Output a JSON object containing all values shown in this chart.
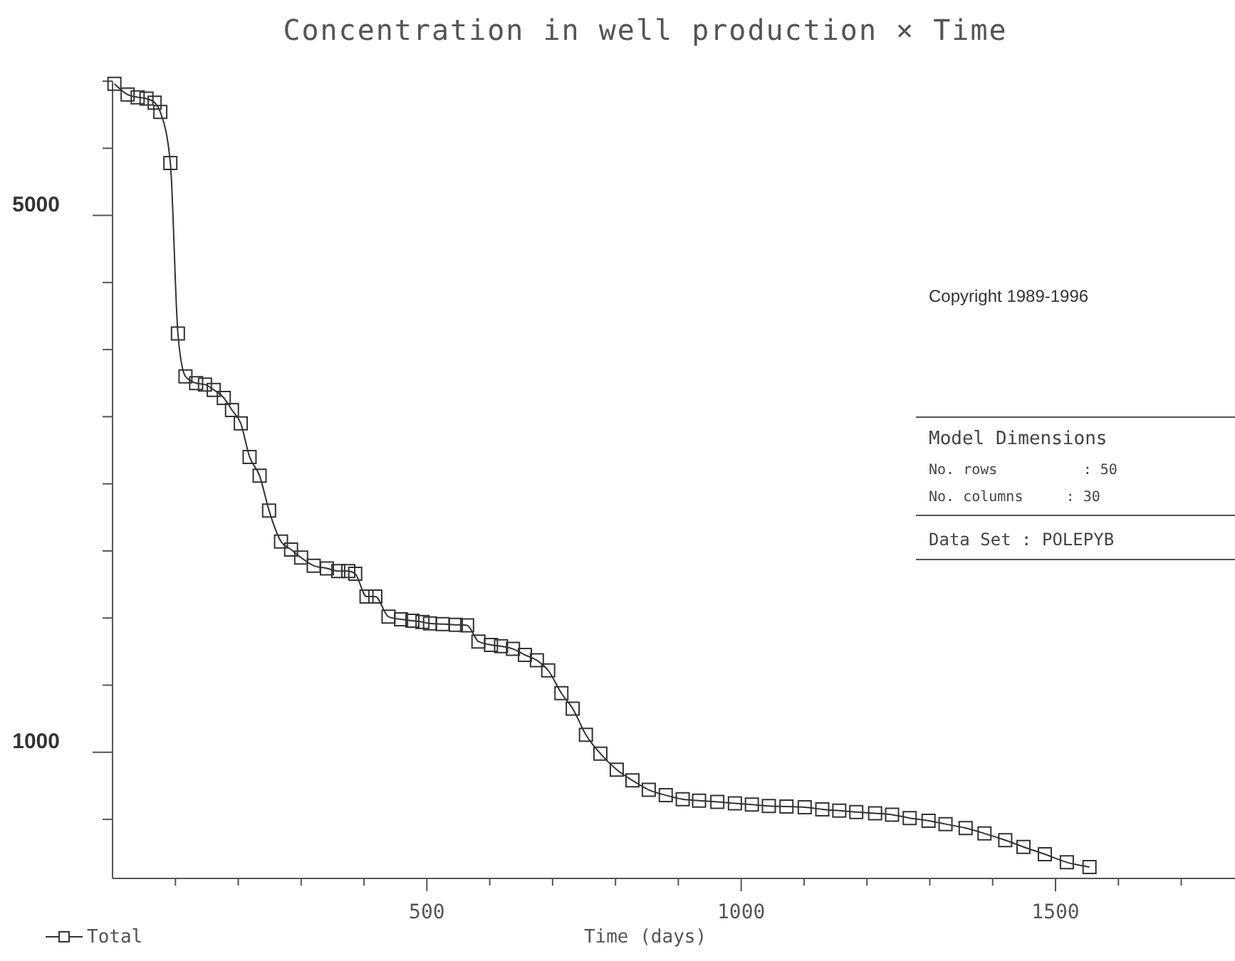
{
  "chart_data": {
    "type": "line",
    "title": "Concentration in well production × Time",
    "xlabel": "Time (days)",
    "x": [
      3,
      24,
      40,
      54,
      67,
      76,
      92,
      104,
      116,
      133,
      147,
      161,
      177,
      190,
      204,
      218,
      234,
      249,
      268,
      284,
      300,
      320,
      341,
      359,
      375,
      386,
      404,
      418,
      439,
      459,
      477,
      493,
      505,
      525,
      546,
      564,
      582,
      602,
      618,
      637,
      656,
      675,
      693,
      714,
      732,
      753,
      776,
      802,
      827,
      853,
      880,
      907,
      933,
      962,
      990,
      1017,
      1044,
      1072,
      1101,
      1129,
      1156,
      1183,
      1213,
      1240,
      1268,
      1298,
      1325,
      1357,
      1387,
      1420,
      1449,
      1483,
      1518,
      1554
    ],
    "series": [
      {
        "name": "Total",
        "color": "#333333",
        "values": [
          5980,
          5900,
          5880,
          5870,
          5840,
          5770,
          5390,
          4120,
          3800,
          3750,
          3740,
          3700,
          3640,
          3550,
          3450,
          3200,
          3060,
          2800,
          2570,
          2510,
          2450,
          2390,
          2370,
          2350,
          2350,
          2330,
          2160,
          2160,
          2010,
          1990,
          1980,
          1970,
          1960,
          1955,
          1950,
          1945,
          1825,
          1800,
          1790,
          1770,
          1725,
          1685,
          1610,
          1440,
          1325,
          1130,
          990,
          870,
          790,
          720,
          680,
          650,
          640,
          630,
          620,
          610,
          600,
          595,
          590,
          575,
          565,
          555,
          545,
          535,
          510,
          490,
          465,
          435,
          395,
          345,
          295,
          240,
          180,
          145
        ]
      }
    ],
    "xlim": [
      0,
      1790
    ],
    "xticks": [
      {
        "value": 100,
        "label": null
      },
      {
        "value": 200,
        "label": null
      },
      {
        "value": 300,
        "label": null
      },
      {
        "value": 400,
        "label": null
      },
      500,
      {
        "value": 600,
        "label": null
      },
      {
        "value": 700,
        "label": null
      },
      {
        "value": 800,
        "label": null
      },
      {
        "value": 900,
        "label": null
      },
      1000,
      {
        "value": 1100,
        "label": null
      },
      {
        "value": 1200,
        "label": null
      },
      {
        "value": 1300,
        "label": null
      },
      {
        "value": 1400,
        "label": null
      },
      1500,
      {
        "value": 1600,
        "label": null
      },
      {
        "value": 1700,
        "label": null
      }
    ],
    "ylim": [
      60,
      6000
    ],
    "yticks": [
      {
        "value": 500,
        "label": null
      },
      1000,
      {
        "value": 1500,
        "label": null
      },
      {
        "value": 2000,
        "label": null
      },
      {
        "value": 2500,
        "label": null
      },
      {
        "value": 3000,
        "label": null
      },
      {
        "value": 3500,
        "label": null
      },
      {
        "value": 4000,
        "label": null
      },
      {
        "value": 4500,
        "label": null
      },
      5000,
      {
        "value": 5500,
        "label": null
      },
      {
        "value": 6000,
        "label": null
      }
    ],
    "marker": "square",
    "grid": false,
    "legend": "bottom left",
    "annotations": [
      "Copyright 1989-1996",
      "Model Dimensions",
      "No. rows          : 50",
      "No. columns     : 30",
      "Data Set : POLEPYB"
    ]
  }
}
